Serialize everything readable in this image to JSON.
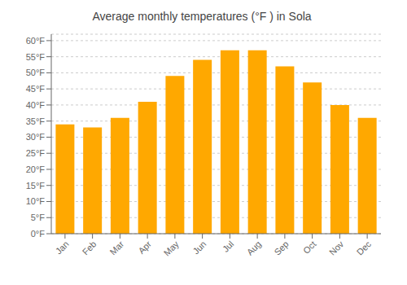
{
  "chart_data": {
    "type": "bar",
    "title": "Average monthly temperatures (°F ) in Sola",
    "categories": [
      "Jan",
      "Feb",
      "Mar",
      "Apr",
      "May",
      "Jun",
      "Jul",
      "Aug",
      "Sep",
      "Oct",
      "Nov",
      "Dec"
    ],
    "values": [
      34,
      33,
      36,
      41,
      49,
      54,
      57,
      57,
      52,
      47,
      40,
      36
    ],
    "color": "#FFA800",
    "ylim": [
      0,
      62
    ],
    "yticks": [
      {
        "value": 0,
        "label": "0°F"
      },
      {
        "value": 5,
        "label": "5°F"
      },
      {
        "value": 10,
        "label": "10°F"
      },
      {
        "value": 15,
        "label": "15°F"
      },
      {
        "value": 20,
        "label": "20°F"
      },
      {
        "value": 25,
        "label": "25°F"
      },
      {
        "value": 30,
        "label": "30°F"
      },
      {
        "value": 35,
        "label": "35°F"
      },
      {
        "value": 40,
        "label": "40°F"
      },
      {
        "value": 45,
        "label": "45°F"
      },
      {
        "value": 50,
        "label": "50°F"
      },
      {
        "value": 55,
        "label": "55°F"
      },
      {
        "value": 60,
        "label": "60°F"
      }
    ],
    "grid": true
  }
}
